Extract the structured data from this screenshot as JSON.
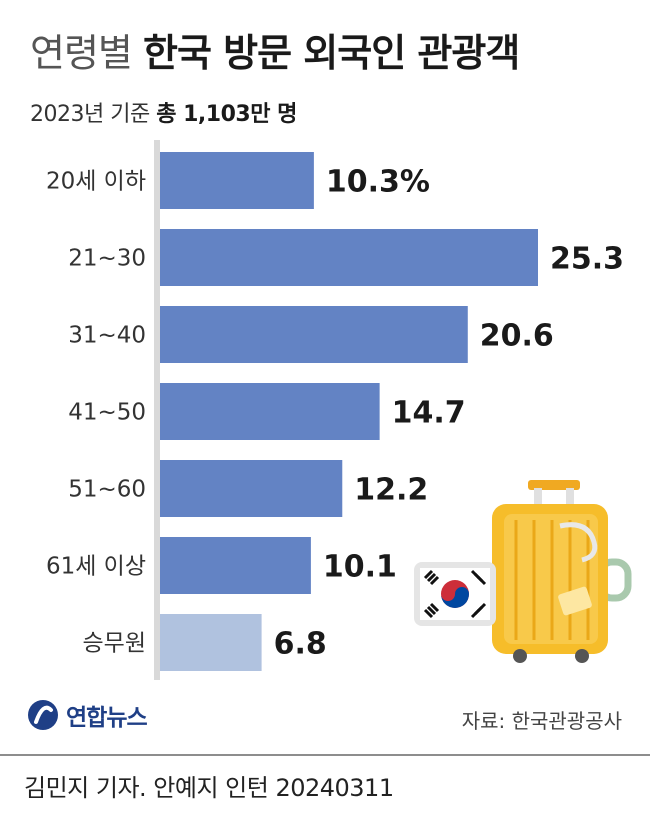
{
  "title": {
    "light": "연령별",
    "bold": "한국 방문 외국인 관광객"
  },
  "subtitle": {
    "prefix": "2023년 기준",
    "strong": "총 1,103만 명"
  },
  "chart_data": {
    "type": "bar",
    "orientation": "horizontal",
    "categories": [
      "20세 이하",
      "21~30",
      "31~40",
      "41~50",
      "51~60",
      "61세 이상",
      "승무원"
    ],
    "values": [
      10.3,
      25.3,
      20.6,
      14.7,
      12.2,
      10.1,
      6.8
    ],
    "data_labels": [
      "10.3%",
      "25.3",
      "20.6",
      "14.7",
      "12.2",
      "10.1",
      "6.8"
    ],
    "xlim": [
      0,
      25.3
    ],
    "grid": false,
    "legend": "none",
    "colors": {
      "bar": "#6383c4",
      "bar_highlight_last": "#b0c2df",
      "axis": "#d9d9d9"
    }
  },
  "logo": {
    "text": "연합뉴스",
    "icon": "yonhap-logo-icon"
  },
  "source": "자료: 한국관광공사",
  "credit": "김민지 기자. 안예지 인턴 20240311",
  "illustration": {
    "icon": "suitcase-with-korean-flag-icon"
  }
}
